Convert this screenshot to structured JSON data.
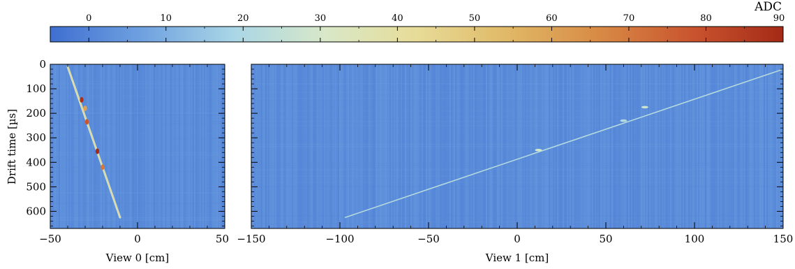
{
  "chart_data": [
    {
      "type": "heatmap",
      "xlabel": "View 0 [cm]",
      "ylabel": "Drift time [µs]",
      "xlim": [
        -50,
        50
      ],
      "ylim": [
        0,
        670
      ],
      "y_inverted": true,
      "xticks": [
        -50,
        0,
        50
      ],
      "yticks": [
        0,
        100,
        200,
        300,
        400,
        500,
        600
      ],
      "tracks": [
        {
          "x": [
            -40,
            -10
          ],
          "y": [
            10,
            625
          ]
        }
      ],
      "hotspots": [
        {
          "x": -32,
          "y": 145,
          "adc": 88
        },
        {
          "x": -29,
          "y": 235,
          "adc": 78
        },
        {
          "x": -23,
          "y": 355,
          "adc": 90
        },
        {
          "x": -20,
          "y": 420,
          "adc": 70
        },
        {
          "x": -30,
          "y": 180,
          "adc": 60
        }
      ],
      "background_adc": 2
    },
    {
      "type": "heatmap",
      "xlabel": "View 1 [cm]",
      "xlim": [
        -150,
        150
      ],
      "ylim": [
        0,
        670
      ],
      "y_inverted": true,
      "xticks": [
        -150,
        -100,
        -50,
        0,
        50,
        100,
        150
      ],
      "yticks": [
        0,
        100,
        200,
        300,
        400,
        500,
        600
      ],
      "tracks": [
        {
          "x": [
            -97,
            150
          ],
          "y": [
            625,
            20
          ]
        }
      ],
      "hotspots": [
        {
          "x": 12,
          "y": 350,
          "adc": 30
        },
        {
          "x": 72,
          "y": 175,
          "adc": 28
        },
        {
          "x": 60,
          "y": 230,
          "adc": 22
        }
      ],
      "background_adc": 2
    }
  ],
  "colorbar": {
    "label": "ADC",
    "range": [
      -5,
      90
    ],
    "ticks": [
      0,
      10,
      20,
      30,
      40,
      50,
      60,
      70,
      80,
      90
    ],
    "colors": [
      "#3f6fd1",
      "#6fa1e0",
      "#a9d6e6",
      "#d8e8c8",
      "#e7dc98",
      "#e0b866",
      "#d88a45",
      "#c9552f",
      "#a52a16"
    ]
  }
}
